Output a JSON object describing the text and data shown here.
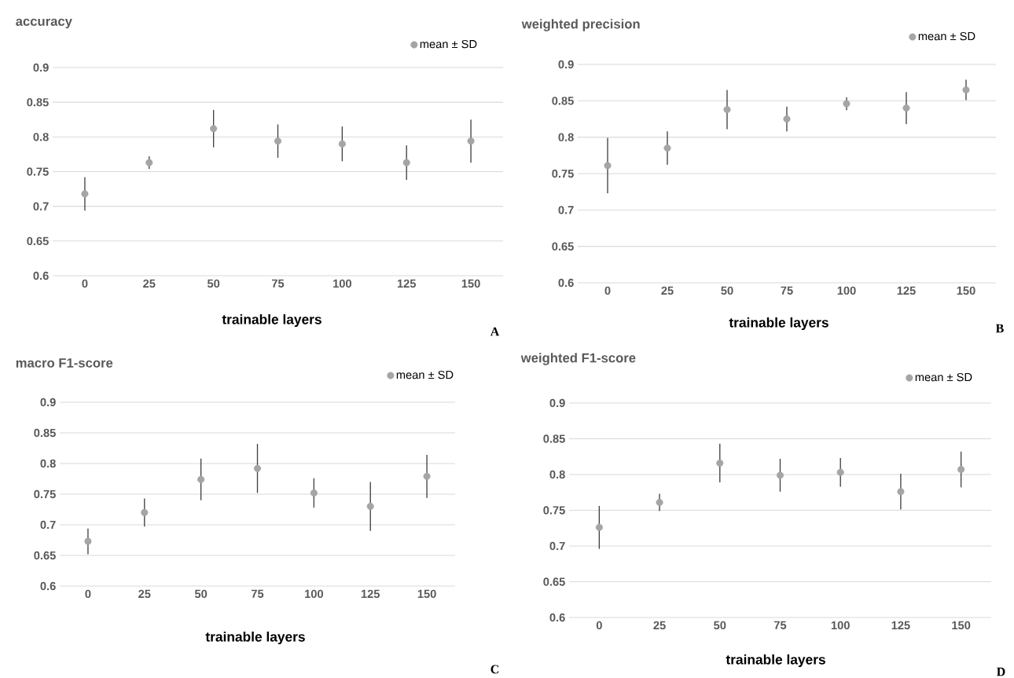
{
  "chart_data": [
    {
      "type": "scatter",
      "title": "accuracy",
      "xlabel": "trainable layers",
      "categories": [
        "0",
        "25",
        "50",
        "75",
        "100",
        "125",
        "150"
      ],
      "series": [
        {
          "name": "mean ± SD",
          "color": "#a5a5a5",
          "values": [
            0.718,
            0.763,
            0.812,
            0.794,
            0.79,
            0.763,
            0.794
          ],
          "errors": [
            0.024,
            0.009,
            0.027,
            0.024,
            0.025,
            0.025,
            0.031
          ]
        }
      ],
      "ylim": [
        0.6,
        0.9
      ],
      "yticks": [
        0.6,
        0.65,
        0.7,
        0.75,
        0.8,
        0.85,
        0.9
      ],
      "grid": "y",
      "legend": "top right",
      "marker": "circle",
      "annotations": [
        "A"
      ]
    },
    {
      "type": "scatter",
      "title": "weighted precision",
      "xlabel": "trainable layers",
      "categories": [
        "0",
        "25",
        "50",
        "75",
        "100",
        "125",
        "150"
      ],
      "series": [
        {
          "name": "mean ± SD",
          "color": "#a5a5a5",
          "values": [
            0.761,
            0.785,
            0.838,
            0.825,
            0.846,
            0.84,
            0.865
          ],
          "errors": [
            0.038,
            0.023,
            0.027,
            0.017,
            0.009,
            0.022,
            0.014
          ]
        }
      ],
      "ylim": [
        0.6,
        0.9
      ],
      "yticks": [
        0.6,
        0.65,
        0.7,
        0.75,
        0.8,
        0.85,
        0.9
      ],
      "grid": "y",
      "legend": "top right",
      "marker": "circle",
      "annotations": [
        "B"
      ]
    },
    {
      "type": "scatter",
      "title": "macro F1-score",
      "xlabel": "trainable layers",
      "categories": [
        "0",
        "25",
        "50",
        "75",
        "100",
        "125",
        "150"
      ],
      "series": [
        {
          "name": "mean ± SD",
          "color": "#a5a5a5",
          "values": [
            0.673,
            0.72,
            0.774,
            0.792,
            0.752,
            0.73,
            0.779
          ],
          "errors": [
            0.021,
            0.023,
            0.034,
            0.04,
            0.024,
            0.04,
            0.035
          ]
        }
      ],
      "ylim": [
        0.6,
        0.9
      ],
      "yticks": [
        0.6,
        0.65,
        0.7,
        0.75,
        0.8,
        0.85,
        0.9
      ],
      "grid": "y",
      "legend": "top right",
      "marker": "circle",
      "annotations": [
        "C"
      ]
    },
    {
      "type": "scatter",
      "title": "weighted F1-score",
      "xlabel": "trainable layers",
      "categories": [
        "0",
        "25",
        "50",
        "75",
        "100",
        "125",
        "150"
      ],
      "series": [
        {
          "name": "mean ± SD",
          "color": "#a5a5a5",
          "values": [
            0.726,
            0.761,
            0.816,
            0.799,
            0.803,
            0.776,
            0.807
          ],
          "errors": [
            0.03,
            0.012,
            0.027,
            0.023,
            0.02,
            0.025,
            0.025
          ]
        }
      ],
      "ylim": [
        0.6,
        0.9
      ],
      "yticks": [
        0.6,
        0.65,
        0.7,
        0.75,
        0.8,
        0.85,
        0.9
      ],
      "grid": "y",
      "legend": "top right",
      "marker": "circle",
      "annotations": [
        "D"
      ]
    }
  ]
}
